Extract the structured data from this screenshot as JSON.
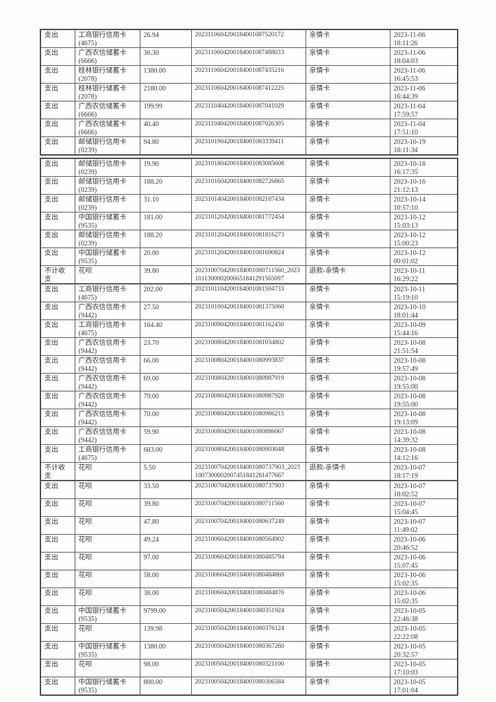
{
  "page": {
    "background_color": "#fcfcfb",
    "text_color": "#3a3a3c",
    "border_color": "#5a5b5f"
  },
  "table": {
    "segments": [
      {
        "rows": [
          {
            "type": "支出",
            "card": "工商银行信用卡",
            "card_no": "(4675)",
            "amount": "26.94",
            "txn": "2023110604200184001087520172",
            "category": "亲情卡",
            "date": "2023-11-06",
            "time": "18:11:26",
            "flagged": false
          },
          {
            "type": "支出",
            "card": "广西农信储蓄卡",
            "card_no": "(6666)",
            "amount": "36.30",
            "txn": "2023110604200184001087488033",
            "category": "亲情卡",
            "date": "2023-11-06",
            "time": "18:04:03",
            "flagged": false
          },
          {
            "type": "支出",
            "card": "桂林银行储蓄卡",
            "card_no": "(2078)",
            "amount": "1380.00",
            "txn": "2023110604200184001087435216",
            "category": "亲情卡",
            "date": "2023-11-06",
            "time": "16:45:53",
            "flagged": false
          },
          {
            "type": "支出",
            "card": "桂林银行储蓄卡",
            "card_no": "(2078)",
            "amount": "2180.00",
            "txn": "2023110604200184001087412225",
            "category": "亲情卡",
            "date": "2023-11-06",
            "time": "16:44:39",
            "flagged": false
          },
          {
            "type": "支出",
            "card": "广西农信储蓄卡",
            "card_no": "(6666)",
            "amount": "199.99",
            "txn": "2023110404200184001087041029",
            "category": "亲情卡",
            "date": "2023-11-04",
            "time": "17:59:57",
            "flagged": false
          },
          {
            "type": "支出",
            "card": "广西农信储蓄卡",
            "card_no": "(6666)",
            "amount": "40.40",
            "txn": "2023110404200184001087026305",
            "category": "亲情卡",
            "date": "2023-11-04",
            "time": "17:51:10",
            "flagged": false
          },
          {
            "type": "支出",
            "card": "邮储银行信用卡",
            "card_no": "(0239)",
            "amount": "94.80",
            "txn": "2023101904200184001083339411",
            "category": "亲情卡",
            "date": "2023-10-19",
            "time": "18:11:34",
            "flagged": false
          }
        ]
      },
      {
        "rows": [
          {
            "type": "支出",
            "card": "邮储银行信用卡",
            "card_no": "(0239)",
            "amount": "19.90",
            "txn": "2023101804200184001083085608",
            "category": "亲情卡",
            "date": "2023-10-18",
            "time": "16:17:35",
            "flagged": false
          },
          {
            "type": "支出",
            "card": "邮储银行信用卡",
            "card_no": "(0239)",
            "amount": "188.20",
            "txn": "2023101604200184001082726865",
            "category": "亲情卡",
            "date": "2023-10-16",
            "time": "21:12:13",
            "flagged": false
          },
          {
            "type": "支出",
            "card": "邮储银行信用卡",
            "card_no": "(0239)",
            "amount": "31.10",
            "txn": "2023101404200184001082187434",
            "category": "亲情卡",
            "date": "2023-10-14",
            "time": "10:57:10",
            "flagged": false
          },
          {
            "type": "支出",
            "card": "中国银行储蓄卡",
            "card_no": "(9535)",
            "amount": "181.00",
            "txn": "2023101204200184001081772454",
            "category": "亲情卡",
            "date": "2023-10-12",
            "time": "15:03:13",
            "flagged": false
          },
          {
            "type": "支出",
            "card": "邮储银行信用卡",
            "card_no": "(0239)",
            "amount": "188.20",
            "txn": "2023101204200184001081816273",
            "category": "亲情卡",
            "date": "2023-10-12",
            "time": "15:00:23",
            "flagged": false
          },
          {
            "type": "支出",
            "card": "中国银行储蓄卡",
            "card_no": "(9535)",
            "amount": "20.00",
            "txn": "2023101204200184001081690824",
            "category": "亲情卡",
            "date": "2023-10-12",
            "time": "00:01:02",
            "flagged": false
          },
          {
            "type": "不计收支",
            "card": "花呗",
            "card_no": "",
            "amount": "39.80",
            "txn": "2023100704200184001080711560_20231011300002006651841291565097",
            "category": "退款-亲情卡",
            "date": "2023-10-11",
            "time": "16:29:22",
            "flagged": true
          },
          {
            "type": "支出",
            "card": "工商银行信用卡",
            "card_no": "(4675)",
            "amount": "202.00",
            "txn": "2023101104200184001081594733",
            "category": "亲情卡",
            "date": "2023-10-11",
            "time": "15:19:10",
            "flagged": false
          },
          {
            "type": "支出",
            "card": "广西农信信用卡",
            "card_no": "(9442)",
            "amount": "27.50",
            "txn": "2023101004200184001081375060",
            "category": "亲情卡",
            "date": "2023-10-10",
            "time": "18:01:44",
            "flagged": false
          },
          {
            "type": "支出",
            "card": "工商银行信用卡",
            "card_no": "(4675)",
            "amount": "164.40",
            "txn": "2023100904200184001081162450",
            "category": "亲情卡",
            "date": "2023-10-09",
            "time": "15:44:16",
            "flagged": false
          },
          {
            "type": "支出",
            "card": "广西农信信用卡",
            "card_no": "(9442)",
            "amount": "23.70",
            "txn": "2023100804200184001081034802",
            "category": "亲情卡",
            "date": "2023-10-08",
            "time": "21:51:54",
            "flagged": false
          },
          {
            "type": "支出",
            "card": "广西农信信用卡",
            "card_no": "(9442)",
            "amount": "66.00",
            "txn": "2023100804200184001080993837",
            "category": "亲情卡",
            "date": "2023-10-08",
            "time": "19:57:49",
            "flagged": false
          },
          {
            "type": "支出",
            "card": "广西农信信用卡",
            "card_no": "(9442)",
            "amount": "69.00",
            "txn": "2023100804200184001080987919",
            "category": "亲情卡",
            "date": "2023-10-08",
            "time": "19:55:00",
            "flagged": false
          },
          {
            "type": "支出",
            "card": "广西农信信用卡",
            "card_no": "(9442)",
            "amount": "79.00",
            "txn": "2023100804200184001080987920",
            "category": "亲情卡",
            "date": "2023-10-08",
            "time": "19:55:00",
            "flagged": false
          },
          {
            "type": "支出",
            "card": "广西农信信用卡",
            "card_no": "(9442)",
            "amount": "70.00",
            "txn": "2023100804200184001080986215",
            "category": "亲情卡",
            "date": "2023-10-08",
            "time": "19:13:09",
            "flagged": false
          },
          {
            "type": "支出",
            "card": "广西农信信用卡",
            "card_no": "(9442)",
            "amount": "59.90",
            "txn": "2023100804200184001080886067",
            "category": "亲情卡",
            "date": "2023-10-08",
            "time": "14:39:32",
            "flagged": false
          },
          {
            "type": "支出",
            "card": "工商银行信用卡",
            "card_no": "(4675)",
            "amount": "683.00",
            "txn": "2023100804200184001080903048",
            "category": "亲情卡",
            "date": "2023-10-08",
            "time": "14:12:16",
            "flagged": false
          },
          {
            "type": "不计收支",
            "card": "花呗",
            "card_no": "",
            "amount": "5.50",
            "txn": "2023100704200184001080737903_20231007300002007451841281477667",
            "category": "退款-亲情卡",
            "date": "2023-10-07",
            "time": "18:17:19",
            "flagged": true
          },
          {
            "type": "支出",
            "card": "花呗",
            "card_no": "",
            "amount": "33.50",
            "txn": "2023100704200184001080737903",
            "category": "亲情卡",
            "date": "2023-10-07",
            "time": "18:02:52",
            "flagged": false
          },
          {
            "type": "支出",
            "card": "花呗",
            "card_no": "",
            "amount": "39.80",
            "txn": "2023100704200184001080711560",
            "category": "亲情卡",
            "date": "2023-10-07",
            "time": "15:04:45",
            "flagged": false
          },
          {
            "type": "支出",
            "card": "花呗",
            "card_no": "",
            "amount": "47.80",
            "txn": "2023100704200184001080637249",
            "category": "亲情卡",
            "date": "2023-10-07",
            "time": "11:49:02",
            "flagged": false
          },
          {
            "type": "支出",
            "card": "花呗",
            "card_no": "",
            "amount": "49.24",
            "txn": "2023100604200184001080564902",
            "category": "亲情卡",
            "date": "2023-10-06",
            "time": "20:46:52",
            "flagged": false
          },
          {
            "type": "支出",
            "card": "花呗",
            "card_no": "",
            "amount": "97.00",
            "txn": "2023100604200184001080485794",
            "category": "亲情卡",
            "date": "2023-10-06",
            "time": "15:07:45",
            "flagged": false
          },
          {
            "type": "支出",
            "card": "花呗",
            "card_no": "",
            "amount": "58.00",
            "txn": "2023100604200184001080484869",
            "category": "亲情卡",
            "date": "2023-10-06",
            "time": "15:02:35",
            "flagged": false
          },
          {
            "type": "支出",
            "card": "花呗",
            "card_no": "",
            "amount": "38.00",
            "txn": "2023100604200184001080484870",
            "category": "亲情卡",
            "date": "2023-10-06",
            "time": "15:02:35",
            "flagged": false
          },
          {
            "type": "支出",
            "card": "中国银行储蓄卡",
            "card_no": "(9535)",
            "amount": "9799.00",
            "txn": "2023100504200184001080351924",
            "category": "亲情卡",
            "date": "2023-10-05",
            "time": "22:46:38",
            "flagged": false
          },
          {
            "type": "支出",
            "card": "花呗",
            "card_no": "",
            "amount": "139.98",
            "txn": "2023100504200184001080376124",
            "category": "亲情卡",
            "date": "2023-10-05",
            "time": "22:22:08",
            "flagged": false
          },
          {
            "type": "支出",
            "card": "中国银行储蓄卡",
            "card_no": "(9535)",
            "amount": "1380.00",
            "txn": "2023100504200184001080367260",
            "category": "亲情卡",
            "date": "2023-10-05",
            "time": "20:32:57",
            "flagged": false
          },
          {
            "type": "支出",
            "card": "花呗",
            "card_no": "",
            "amount": "98.00",
            "txn": "2023100504200184001080321100",
            "category": "亲情卡",
            "date": "2023-10-05",
            "time": "17:10:03",
            "flagged": false
          },
          {
            "type": "支出",
            "card": "中国银行储蓄卡",
            "card_no": "(9535)",
            "amount": "800.00",
            "txn": "2023100504200184001080306584",
            "category": "亲情卡",
            "date": "2023-10-05",
            "time": "17:01:04",
            "flagged": false
          }
        ]
      }
    ]
  }
}
